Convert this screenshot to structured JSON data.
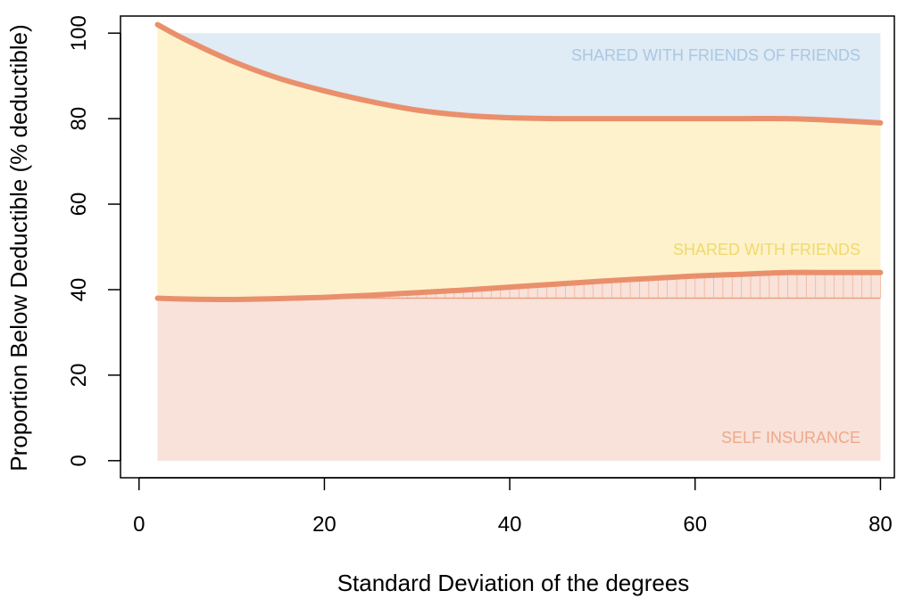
{
  "chart_data": {
    "type": "area",
    "title": "",
    "xlabel": "Standard Deviation of the degrees",
    "ylabel": "Proportion Below Deductible (% deductible)",
    "xlim": [
      -2,
      81.5
    ],
    "ylim": [
      -4,
      104
    ],
    "x_ticks": [
      "0",
      "20",
      "40",
      "60",
      "80"
    ],
    "y_ticks": [
      "0",
      "20",
      "40",
      "60",
      "80",
      "100"
    ],
    "grid": false,
    "series": [
      {
        "x": [
          2,
          5,
          10,
          15,
          20,
          25,
          30,
          35,
          40,
          45,
          50,
          55,
          60,
          65,
          70,
          75,
          80
        ],
        "y": [
          102,
          98.5,
          93.5,
          89.5,
          86.5,
          84,
          82,
          80.8,
          80.2,
          80,
          80,
          80,
          80,
          80,
          80,
          79.6,
          79
        ]
      },
      {
        "x": [
          2,
          5,
          10,
          15,
          20,
          25,
          30,
          35,
          40,
          45,
          50,
          55,
          60,
          65,
          70,
          75,
          80
        ],
        "y": [
          38,
          37.8,
          37.7,
          37.9,
          38.2,
          38.7,
          39.3,
          39.9,
          40.6,
          41.3,
          42,
          42.6,
          43.2,
          43.6,
          44,
          44,
          44
        ]
      }
    ],
    "regions": [
      {
        "label": "SHARED WITH FRIENDS OF FRIENDS",
        "color": "#dfebf5",
        "text_color": "#a9c8e3"
      },
      {
        "label": "SHARED WITH FRIENDS",
        "color": "#fdf2cb",
        "text_color": "#f1d96a"
      },
      {
        "label": "SELF INSURANCE",
        "color": "#f8e2d9",
        "text_color": "#eda88b"
      }
    ],
    "self_insurance_baseline": 38,
    "x_start": 2,
    "x_end": 80,
    "region_top": 100,
    "line_color": "#ea8f6c"
  }
}
